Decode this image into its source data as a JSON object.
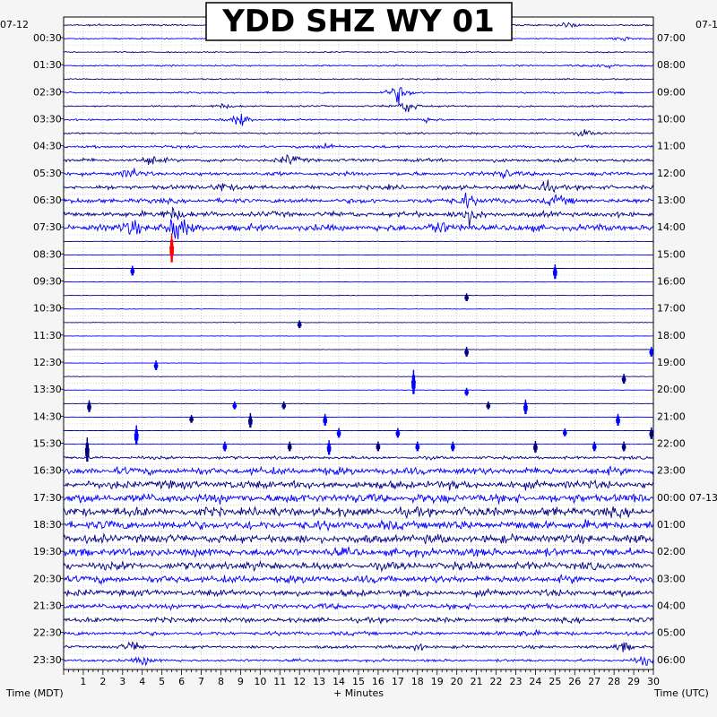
{
  "chart_data": {
    "type": "line",
    "title": "YDD SHZ WY 01",
    "xlabel": "+ Minutes",
    "left_axis_label": "Time (MDT)",
    "right_axis_label": "Time (UTC)",
    "left_date": "07-12",
    "right_start_date": "07-1",
    "right_next_date": "07-13",
    "x_range": [
      0,
      30
    ],
    "x_ticks": [
      "1",
      "2",
      "3",
      "4",
      "5",
      "6",
      "7",
      "8",
      "9",
      "10",
      "11",
      "12",
      "13",
      "14",
      "15",
      "16",
      "17",
      "18",
      "19",
      "20",
      "21",
      "22",
      "23",
      "24",
      "25",
      "26",
      "27",
      "28",
      "29",
      "30"
    ],
    "left_labels": [
      "00:30",
      "01:30",
      "02:30",
      "03:30",
      "04:30",
      "05:30",
      "06:30",
      "07:30",
      "08:30",
      "09:30",
      "10:30",
      "11:30",
      "12:30",
      "13:30",
      "14:30",
      "15:30",
      "16:30",
      "17:30",
      "18:30",
      "19:30",
      "20:30",
      "21:30",
      "22:30",
      "23:30"
    ],
    "right_labels": [
      "07:00",
      "08:00",
      "09:00",
      "10:00",
      "11:00",
      "12:00",
      "13:00",
      "14:00",
      "15:00",
      "16:00",
      "17:00",
      "18:00",
      "19:00",
      "20:00",
      "21:00",
      "22:00",
      "23:00",
      "00:00",
      "01:00",
      "02:00",
      "03:00",
      "04:00",
      "05:00",
      "06:00"
    ],
    "grid": true,
    "trace_colors": [
      "#000080",
      "#0000ff",
      "#00008b",
      "#0000ff"
    ],
    "event_color": "#ff0000",
    "rows_per_hour": 2,
    "row_activity": [
      {
        "row": 0,
        "level": 0.3,
        "events": [
          [
            25.5,
            1.2
          ]
        ]
      },
      {
        "row": 1,
        "level": 0.2,
        "events": [
          [
            28.5,
            1.0
          ]
        ]
      },
      {
        "row": 2,
        "level": 0.2,
        "events": []
      },
      {
        "row": 3,
        "level": 0.3,
        "events": [
          [
            27.5,
            1.5
          ]
        ]
      },
      {
        "row": 4,
        "level": 0.2,
        "events": []
      },
      {
        "row": 5,
        "level": 0.3,
        "events": [
          [
            17.0,
            4.0
          ]
        ]
      },
      {
        "row": 6,
        "level": 0.3,
        "events": [
          [
            17.5,
            3.0
          ],
          [
            8.0,
            1.0
          ]
        ]
      },
      {
        "row": 7,
        "level": 0.3,
        "events": [
          [
            9.0,
            3.0
          ],
          [
            18.5,
            1.0
          ]
        ]
      },
      {
        "row": 8,
        "level": 0.3,
        "events": [
          [
            26.5,
            1.5
          ]
        ]
      },
      {
        "row": 9,
        "level": 0.5,
        "events": [
          [
            13.5,
            1.5
          ]
        ]
      },
      {
        "row": 10,
        "level": 0.7,
        "events": [
          [
            4.5,
            2.0
          ],
          [
            11.5,
            2.0
          ]
        ]
      },
      {
        "row": 11,
        "level": 0.8,
        "events": [
          [
            3.5,
            2.0
          ],
          [
            22.5,
            2.0
          ]
        ]
      },
      {
        "row": 12,
        "level": 0.9,
        "events": [
          [
            8.0,
            2.0
          ],
          [
            24.5,
            3.0
          ]
        ]
      },
      {
        "row": 13,
        "level": 1.0,
        "events": [
          [
            20.5,
            3.0
          ],
          [
            25.0,
            2.0
          ]
        ]
      },
      {
        "row": 14,
        "level": 1.1,
        "events": [
          [
            20.5,
            4.0
          ],
          [
            5.5,
            3.0
          ]
        ]
      },
      {
        "row": 15,
        "level": 1.4,
        "events": [
          [
            5.8,
            6.0
          ],
          [
            3.5,
            3.0
          ],
          [
            19.0,
            3.0
          ]
        ]
      },
      {
        "row": 16,
        "level": 0.0,
        "events": []
      },
      {
        "row": 17,
        "level": 0.0,
        "events": []
      },
      {
        "row": 18,
        "level": 0.0,
        "events": []
      },
      {
        "row": 19,
        "level": 0.0,
        "events": []
      },
      {
        "row": 20,
        "level": 0.0,
        "events": []
      },
      {
        "row": 21,
        "level": 0.0,
        "events": []
      },
      {
        "row": 22,
        "level": 0.0,
        "events": []
      },
      {
        "row": 23,
        "level": 0.0,
        "events": []
      },
      {
        "row": 24,
        "level": 0.0,
        "events": []
      },
      {
        "row": 25,
        "level": 0.0,
        "events": []
      },
      {
        "row": 26,
        "level": 0.0,
        "events": []
      },
      {
        "row": 27,
        "level": 0.0,
        "events": []
      },
      {
        "row": 28,
        "level": 0.0,
        "events": []
      },
      {
        "row": 29,
        "level": 0.0,
        "events": []
      },
      {
        "row": 30,
        "level": 0.0,
        "events": []
      },
      {
        "row": 31,
        "level": 0.0,
        "events": []
      },
      {
        "row": 32,
        "level": 0.6,
        "events": []
      },
      {
        "row": 33,
        "level": 1.6,
        "events": []
      },
      {
        "row": 34,
        "level": 1.8,
        "events": []
      },
      {
        "row": 35,
        "level": 2.0,
        "events": []
      },
      {
        "row": 36,
        "level": 2.0,
        "events": []
      },
      {
        "row": 37,
        "level": 2.0,
        "events": []
      },
      {
        "row": 38,
        "level": 1.9,
        "events": []
      },
      {
        "row": 39,
        "level": 1.8,
        "events": []
      },
      {
        "row": 40,
        "level": 1.7,
        "events": []
      },
      {
        "row": 41,
        "level": 1.6,
        "events": []
      },
      {
        "row": 42,
        "level": 1.4,
        "events": []
      },
      {
        "row": 43,
        "level": 1.2,
        "events": []
      },
      {
        "row": 44,
        "level": 1.0,
        "events": []
      },
      {
        "row": 45,
        "level": 0.8,
        "events": [
          [
            23.5,
            1.5
          ]
        ]
      },
      {
        "row": 46,
        "level": 0.6,
        "events": [
          [
            3.5,
            2.0
          ],
          [
            18.0,
            1.5
          ],
          [
            28.5,
            2.0
          ]
        ]
      },
      {
        "row": 47,
        "level": 0.5,
        "events": [
          [
            4.0,
            2.0
          ],
          [
            29.5,
            2.0
          ]
        ]
      }
    ],
    "sparse_spikes": [
      [
        16,
        5.5,
        3.0,
        "#ff0000"
      ],
      [
        18,
        3.5,
        1.0,
        "#0000ff"
      ],
      [
        18,
        25.0,
        1.5,
        "#0000ff"
      ],
      [
        20,
        20.5,
        0.8,
        "#000080"
      ],
      [
        22,
        12.0,
        0.8,
        "#000080"
      ],
      [
        24,
        20.5,
        1.0,
        "#000080"
      ],
      [
        24,
        29.9,
        1.0,
        "#0000ff"
      ],
      [
        25,
        4.7,
        1.0,
        "#0000ff"
      ],
      [
        26,
        17.8,
        2.5,
        "#0000ff"
      ],
      [
        26,
        28.5,
        1.0,
        "#000080"
      ],
      [
        27,
        20.5,
        0.8,
        "#0000ff"
      ],
      [
        28,
        1.3,
        1.2,
        "#000080"
      ],
      [
        28,
        8.7,
        0.8,
        "#0000ff"
      ],
      [
        28,
        11.2,
        0.8,
        "#000080"
      ],
      [
        28,
        21.6,
        0.8,
        "#000080"
      ],
      [
        28,
        23.5,
        1.5,
        "#0000ff"
      ],
      [
        29,
        6.5,
        0.8,
        "#000080"
      ],
      [
        29,
        28.2,
        1.2,
        "#0000ff"
      ],
      [
        29,
        9.5,
        1.5,
        "#000080"
      ],
      [
        29,
        13.3,
        1.2,
        "#0000ff"
      ],
      [
        30,
        3.7,
        2.0,
        "#0000ff"
      ],
      [
        30,
        25.5,
        0.8,
        "#0000ff"
      ],
      [
        30,
        29.9,
        1.2,
        "#000080"
      ],
      [
        30,
        14.0,
        1.0,
        "#0000ff"
      ],
      [
        30,
        17.0,
        1.0,
        "#0000ff"
      ],
      [
        31,
        1.2,
        2.5,
        "#000080"
      ],
      [
        31,
        8.2,
        1.0,
        "#0000ff"
      ],
      [
        31,
        11.5,
        1.0,
        "#000080"
      ],
      [
        31,
        13.5,
        1.5,
        "#0000ff"
      ],
      [
        31,
        16.0,
        1.0,
        "#000080"
      ],
      [
        31,
        18.0,
        1.0,
        "#0000ff"
      ],
      [
        31,
        19.8,
        1.0,
        "#0000ff"
      ],
      [
        31,
        24.0,
        1.2,
        "#000080"
      ],
      [
        31,
        27.0,
        1.0,
        "#0000ff"
      ],
      [
        31,
        28.5,
        1.0,
        "#000080"
      ]
    ]
  }
}
